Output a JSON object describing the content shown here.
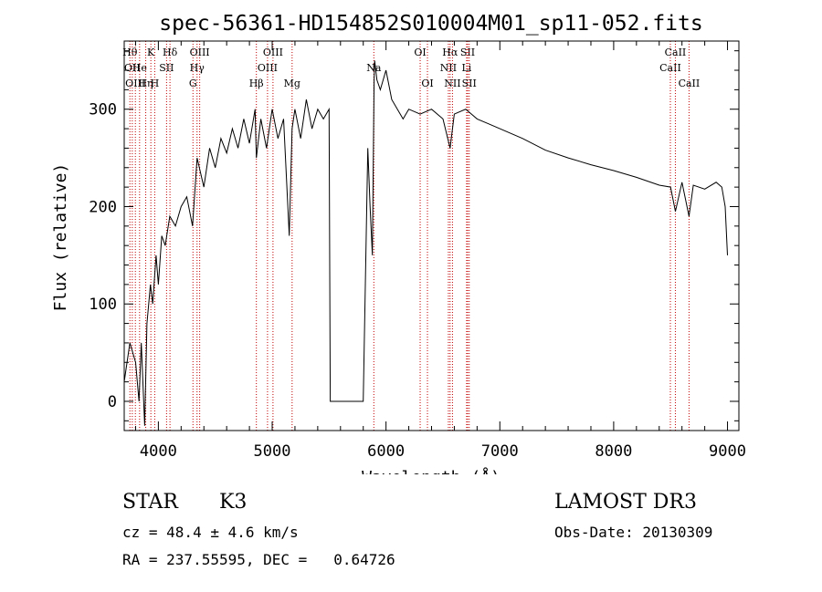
{
  "chart_data": {
    "type": "line",
    "title": "spec-56361-HD154852S010004M01_sp11-052.fits",
    "xlabel": "Wavelength (Å)",
    "ylabel": "Flux (relative)",
    "xlim": [
      3700,
      9100
    ],
    "ylim": [
      -30,
      370
    ],
    "x_ticks": [
      4000,
      5000,
      6000,
      7000,
      8000,
      9000
    ],
    "y_ticks": [
      0,
      100,
      200,
      300
    ],
    "grid": false,
    "series": [
      {
        "x": [
          3700,
          3750,
          3800,
          3830,
          3850,
          3880,
          3900,
          3930,
          3950,
          3980,
          4000,
          4030,
          4060,
          4100,
          4150,
          4200,
          4250,
          4300,
          4340,
          4400,
          4450,
          4500,
          4550,
          4600,
          4650,
          4700,
          4750,
          4800,
          4850,
          4861,
          4900,
          4950,
          5000,
          5050,
          5100,
          5150,
          5175,
          5200,
          5250,
          5300,
          5350,
          5400,
          5450,
          5500,
          5510,
          5520,
          5800,
          5820,
          5840,
          5860,
          5880,
          5895,
          5900,
          5920,
          5950,
          6000,
          6050,
          6100,
          6150,
          6200,
          6300,
          6400,
          6500,
          6563,
          6600,
          6700,
          6800,
          6900,
          7000,
          7200,
          7400,
          7600,
          7800,
          8000,
          8200,
          8400,
          8500,
          8542,
          8600,
          8662,
          8700,
          8800,
          8900,
          8950,
          8980,
          9000
        ],
        "y": [
          20,
          60,
          40,
          0,
          60,
          -25,
          80,
          120,
          100,
          150,
          120,
          170,
          160,
          190,
          180,
          200,
          210,
          180,
          250,
          220,
          260,
          240,
          270,
          255,
          280,
          260,
          290,
          265,
          300,
          250,
          290,
          260,
          300,
          270,
          290,
          170,
          280,
          300,
          270,
          310,
          280,
          300,
          290,
          300,
          0,
          0,
          0,
          130,
          260,
          200,
          150,
          330,
          350,
          330,
          320,
          340,
          310,
          300,
          290,
          300,
          295,
          300,
          290,
          260,
          295,
          300,
          290,
          285,
          280,
          270,
          258,
          250,
          243,
          237,
          230,
          222,
          220,
          195,
          225,
          190,
          222,
          218,
          225,
          220,
          200,
          150
        ]
      }
    ],
    "line_markers": [
      {
        "wl": 3750,
        "label": "Hθ",
        "row": 1
      },
      {
        "wl": 3771,
        "label": "OII",
        "row": 2
      },
      {
        "wl": 3798,
        "label": "OIII",
        "row": 3
      },
      {
        "wl": 3835,
        "label": "He",
        "row": 2
      },
      {
        "wl": 3889,
        "label": "Hη",
        "row": 3
      },
      {
        "wl": 3934,
        "label": "K",
        "row": 1
      },
      {
        "wl": 3968,
        "label": "H",
        "row": 3
      },
      {
        "wl": 4072,
        "label": "SII",
        "row": 2
      },
      {
        "wl": 4102,
        "label": "Hδ",
        "row": 1
      },
      {
        "wl": 4340,
        "label": "Hγ",
        "row": 2
      },
      {
        "wl": 4304,
        "label": "G",
        "row": 3
      },
      {
        "wl": 4363,
        "label": "OIII",
        "row": 1
      },
      {
        "wl": 4861,
        "label": "Hβ",
        "row": 3
      },
      {
        "wl": 4959,
        "label": "OIII",
        "row": 2
      },
      {
        "wl": 5007,
        "label": "OIII",
        "row": 1
      },
      {
        "wl": 5175,
        "label": "Mg",
        "row": 3
      },
      {
        "wl": 5893,
        "label": "Na",
        "row": 2
      },
      {
        "wl": 6300,
        "label": "OI",
        "row": 1
      },
      {
        "wl": 6364,
        "label": "OI",
        "row": 3
      },
      {
        "wl": 6548,
        "label": "NII",
        "row": 2
      },
      {
        "wl": 6563,
        "label": "Hα",
        "row": 1
      },
      {
        "wl": 6584,
        "label": "NII",
        "row": 3
      },
      {
        "wl": 6708,
        "label": "Li",
        "row": 2
      },
      {
        "wl": 6717,
        "label": "SII",
        "row": 1
      },
      {
        "wl": 6731,
        "label": "SII",
        "row": 3
      },
      {
        "wl": 8498,
        "label": "CaII",
        "row": 2
      },
      {
        "wl": 8542,
        "label": "CaII",
        "row": 1
      },
      {
        "wl": 8662,
        "label": "CaII",
        "row": 3
      }
    ]
  },
  "info": {
    "class_label": "STAR",
    "subclass": "K3",
    "survey": "LAMOST DR3",
    "cz": "cz = 48.4 ± 4.6 km/s",
    "obs_date": "Obs-Date: 20130309",
    "radec": "RA = 237.55595, DEC =   0.64726"
  }
}
